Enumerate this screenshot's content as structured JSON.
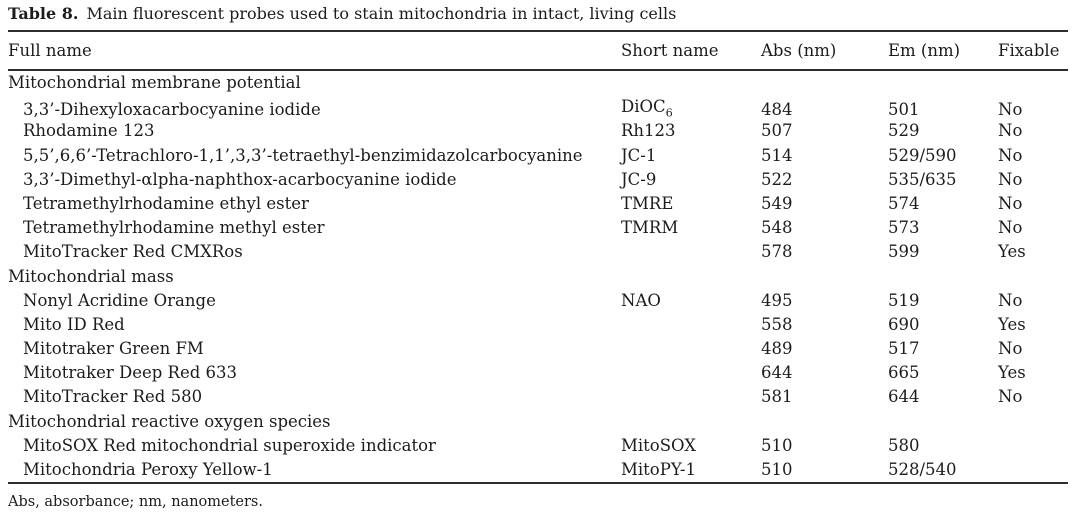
{
  "title": {
    "label": "Table 8.",
    "caption": "Main fluorescent probes used to stain mitochondria in intact, living cells"
  },
  "columns": {
    "full_name": "Full name",
    "short_name": "Short name",
    "abs": "Abs (nm)",
    "em": "Em (nm)",
    "fixable": "Fixable"
  },
  "sections": [
    {
      "name": "Mitochondrial membrane potential",
      "rows": [
        {
          "full_name": "3,3’-Dihexyloxacarbocyanine iodide",
          "short_name": "DiOC",
          "short_name_sub": "6",
          "abs": "484",
          "em": "501",
          "fixable": "No"
        },
        {
          "full_name": "Rhodamine 123",
          "short_name": "Rh123",
          "abs": "507",
          "em": "529",
          "fixable": "No"
        },
        {
          "full_name": "5,5’,6,6’-Tetrachloro-1,1’,3,3’-tetraethyl-benzimidazolcarbocyanine",
          "short_name": "JC-1",
          "abs": "514",
          "em": "529/590",
          "fixable": "No"
        },
        {
          "full_name": "3,3’-Dimethyl-αlpha-naphthox-acarbocyanine iodide",
          "short_name": "JC-9",
          "abs": "522",
          "em": "535/635",
          "fixable": "No"
        },
        {
          "full_name": "Tetramethylrhodamine ethyl ester",
          "short_name": "TMRE",
          "abs": "549",
          "em": "574",
          "fixable": "No"
        },
        {
          "full_name": "Tetramethylrhodamine methyl ester",
          "short_name": "TMRM",
          "abs": "548",
          "em": "573",
          "fixable": "No"
        },
        {
          "full_name": "MitoTracker Red CMXRos",
          "short_name": "",
          "abs": "578",
          "em": "599",
          "fixable": "Yes"
        }
      ]
    },
    {
      "name": "Mitochondrial mass",
      "rows": [
        {
          "full_name": "Nonyl Acridine Orange",
          "short_name": "NAO",
          "abs": "495",
          "em": "519",
          "fixable": "No"
        },
        {
          "full_name": "Mito ID Red",
          "short_name": "",
          "abs": "558",
          "em": "690",
          "fixable": "Yes"
        },
        {
          "full_name": "Mitotraker Green FM",
          "short_name": "",
          "abs": "489",
          "em": "517",
          "fixable": "No"
        },
        {
          "full_name": "Mitotraker Deep Red 633",
          "short_name": "",
          "abs": "644",
          "em": "665",
          "fixable": "Yes"
        },
        {
          "full_name": "MitoTracker Red 580",
          "short_name": "",
          "abs": "581",
          "em": "644",
          "fixable": "No"
        }
      ]
    },
    {
      "name": "Mitochondrial reactive oxygen species",
      "rows": [
        {
          "full_name": "MitoSOX Red mitochondrial superoxide indicator",
          "short_name": "MitoSOX",
          "abs": "510",
          "em": "580",
          "fixable": ""
        },
        {
          "full_name": "Mitochondria Peroxy Yellow-1",
          "short_name": "MitoPY-1",
          "abs": "510",
          "em": "528/540",
          "fixable": ""
        }
      ]
    }
  ],
  "footnote": "Abs, absorbance; nm, nanometers."
}
